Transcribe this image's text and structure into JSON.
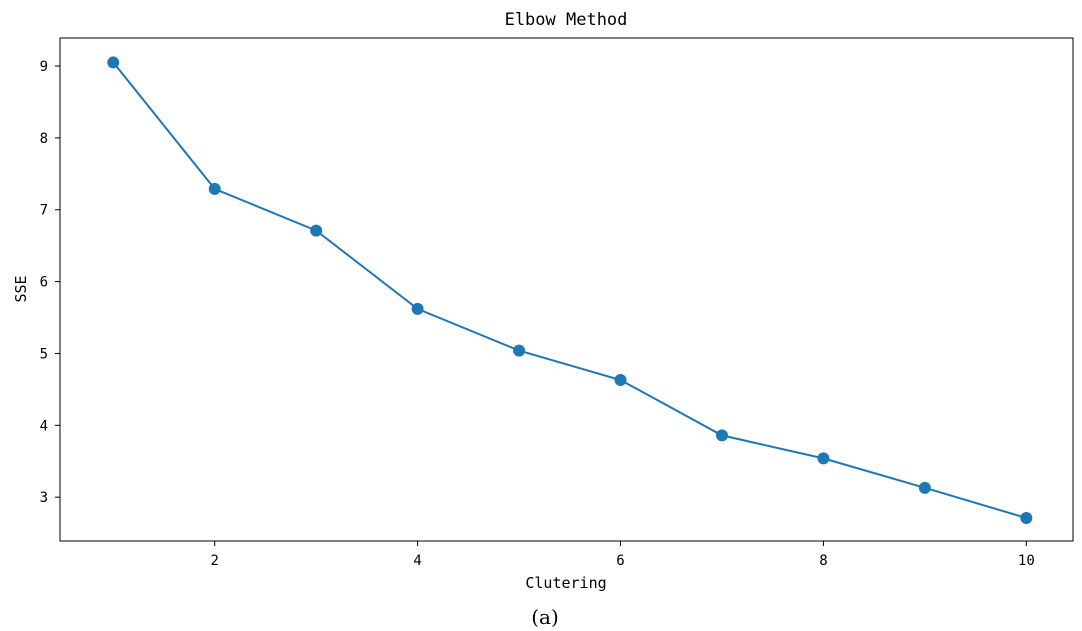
{
  "chart_data": {
    "type": "line",
    "title": "Elbow Method",
    "xlabel": "Clutering",
    "ylabel": "SSE",
    "caption": "(a)",
    "x": [
      1,
      2,
      3,
      4,
      5,
      6,
      7,
      8,
      9,
      10
    ],
    "y": [
      9.05,
      7.29,
      6.71,
      5.62,
      5.04,
      4.63,
      3.86,
      3.54,
      3.13,
      2.71
    ],
    "xlim": [
      0.475,
      10.46
    ],
    "ylim": [
      2.39,
      9.39
    ],
    "xticks": [
      2,
      4,
      6,
      8,
      10
    ],
    "yticks": [
      3,
      4,
      5,
      6,
      7,
      8,
      9
    ],
    "marker": "circle",
    "grid": false,
    "line_color": "#1f77b4"
  }
}
